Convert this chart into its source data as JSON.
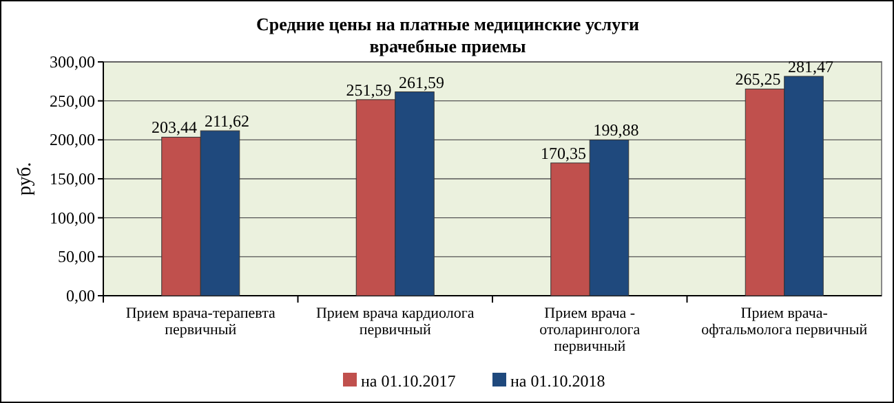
{
  "chart_data": {
    "type": "bar",
    "title": "Средние цены на платные медицинские услуги врачебные приемы",
    "ylabel": "руб.",
    "categories": [
      "Прием врача-терапевта первичный",
      "Прием врача кардиолога первичный",
      "Прием врача - отоларинголога первичный",
      "Прием врача-офтальмолога первичный"
    ],
    "series": [
      {
        "name": "на 01.10.2017",
        "color": "#c0504d",
        "values": [
          203.44,
          251.59,
          170.35,
          265.25
        ],
        "value_labels": [
          "203,44",
          "251,59",
          "170,35",
          "265,25"
        ]
      },
      {
        "name": "на 01.10.2018",
        "color": "#1f497d",
        "values": [
          211.62,
          261.59,
          199.88,
          281.47
        ],
        "value_labels": [
          "211,62",
          "261,59",
          "199,88",
          "281,47"
        ]
      }
    ],
    "ylim": [
      0,
      300
    ],
    "yticks": [
      {
        "value": 0,
        "label": "0,00"
      },
      {
        "value": 50,
        "label": "50,00"
      },
      {
        "value": 100,
        "label": "100,00"
      },
      {
        "value": 150,
        "label": "150,00"
      },
      {
        "value": 200,
        "label": "200,00"
      },
      {
        "value": 250,
        "label": "250,00"
      },
      {
        "value": 300,
        "label": "300,00"
      }
    ],
    "grid": "y",
    "legend": "bottom"
  }
}
